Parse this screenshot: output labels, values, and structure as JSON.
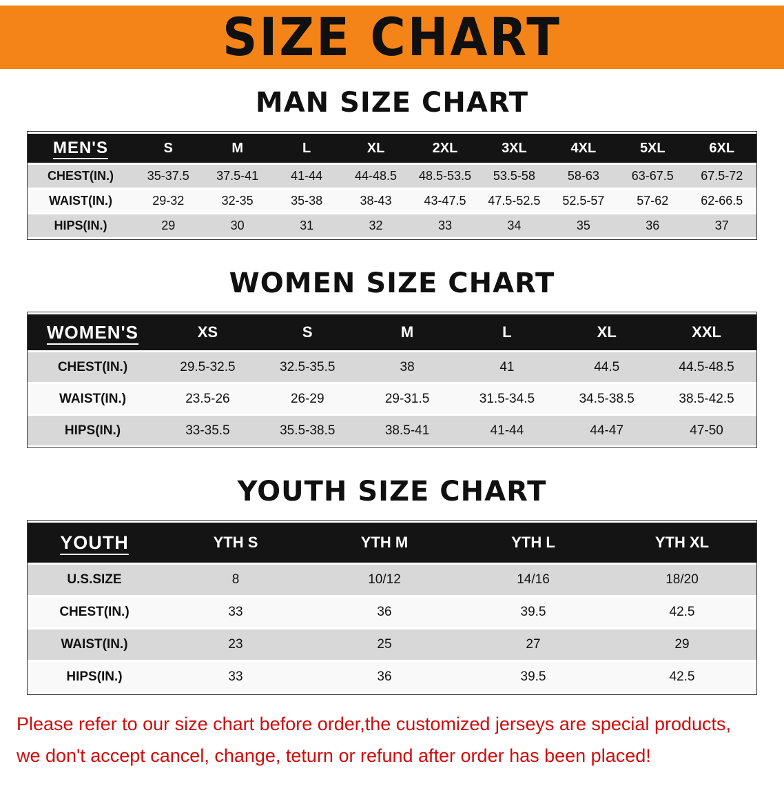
{
  "colors": {
    "banner_orange": "#f58418",
    "header_black": "#141414",
    "row_shade": "#d8d8d8",
    "row_plain": "#f9f9f9",
    "border_dark": "#3c3c3c",
    "text_black": "#111111",
    "disclaimer_red": "#cf0b0b"
  },
  "banner": {
    "title": "SIZE CHART"
  },
  "sections": [
    {
      "heading": "MAN SIZE CHART",
      "table": {
        "header": [
          "MEN'S",
          "S",
          "M",
          "L",
          "XL",
          "2XL",
          "3XL",
          "4XL",
          "5XL",
          "6XL"
        ],
        "rows": [
          [
            "CHEST(IN.)",
            "35-37.5",
            "37.5-41",
            "41-44",
            "44-48.5",
            "48.5-53.5",
            "53.5-58",
            "58-63",
            "63-67.5",
            "67.5-72"
          ],
          [
            "WAIST(IN.)",
            "29-32",
            "32-35",
            "35-38",
            "38-43",
            "43-47.5",
            "47.5-52.5",
            "52.5-57",
            "57-62",
            "62-66.5"
          ],
          [
            "HIPS(IN.)",
            "29",
            "30",
            "31",
            "32",
            "33",
            "34",
            "35",
            "36",
            "37"
          ]
        ]
      }
    },
    {
      "heading": "WOMEN SIZE CHART",
      "table": {
        "header": [
          "WOMEN'S",
          "XS",
          "S",
          "M",
          "L",
          "XL",
          "XXL"
        ],
        "rows": [
          [
            "CHEST(IN.)",
            "29.5-32.5",
            "32.5-35.5",
            "38",
            "41",
            "44.5",
            "44.5-48.5"
          ],
          [
            "WAIST(IN.)",
            "23.5-26",
            "26-29",
            "29-31.5",
            "31.5-34.5",
            "34.5-38.5",
            "38.5-42.5"
          ],
          [
            "HIPS(IN.)",
            "33-35.5",
            "35.5-38.5",
            "38.5-41",
            "41-44",
            "44-47",
            "47-50"
          ]
        ]
      }
    },
    {
      "heading": "YOUTH SIZE CHART",
      "table": {
        "header": [
          "YOUTH",
          "YTH S",
          "YTH M",
          "YTH L",
          "YTH XL"
        ],
        "rows": [
          [
            "U.S.SIZE",
            "8",
            "10/12",
            "14/16",
            "18/20"
          ],
          [
            "CHEST(IN.)",
            "33",
            "36",
            "39.5",
            "42.5"
          ],
          [
            "WAIST(IN.)",
            "23",
            "25",
            "27",
            "29"
          ],
          [
            "HIPS(IN.)",
            "33",
            "36",
            "39.5",
            "42.5"
          ]
        ]
      }
    }
  ],
  "disclaimer": {
    "line1": "Please refer to our size chart before order,the customized jerseys are special products,",
    "line2": "we don't accept cancel, change, teturn or refund after order has been placed!"
  }
}
